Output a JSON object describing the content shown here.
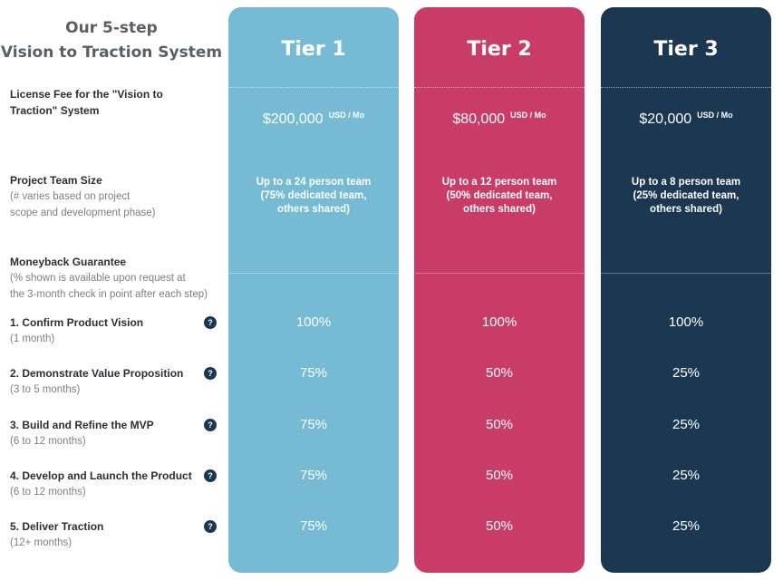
{
  "title": {
    "line1": "Our 5-step",
    "line2": "Vision to Traction System"
  },
  "rows": {
    "fee": {
      "label": "License Fee for the \"Vision to Traction\" System"
    },
    "team": {
      "label": "Project Team Size",
      "sub1": "(# varies based on project",
      "sub2": "scope and development phase)"
    },
    "moneyback": {
      "label": "Moneyback Guarantee",
      "sub1": "(% shown is available upon request at",
      "sub2": "the 3-month check in point after each step)"
    },
    "steps": [
      {
        "label": "1. Confirm Product Vision",
        "duration": "(1 month)"
      },
      {
        "label": "2. Demonstrate Value Proposition",
        "duration": "(3 to 5 months)"
      },
      {
        "label": "3. Build and Refine the MVP",
        "duration": "(6 to 12 months)"
      },
      {
        "label": "4. Develop and Launch the Product",
        "duration": "(6 to 12 months)"
      },
      {
        "label": "5. Deliver Traction",
        "duration": "(12+ months)"
      }
    ],
    "help_icon": "question-circle-icon",
    "help_glyph": "?"
  },
  "tiers": [
    {
      "name": "Tier 1",
      "color": "#76bbd3",
      "fee": "$200,000",
      "unit": "USD / Mo",
      "team": "Up to a 24 person team (75% dedicated team, others shared)",
      "pcts": [
        "100%",
        "75%",
        "75%",
        "75%",
        "75%"
      ]
    },
    {
      "name": "Tier 2",
      "color": "#c93c68",
      "fee": "$80,000",
      "unit": "USD / Mo",
      "team": "Up to a 12 person team (50% dedicated team, others shared)",
      "pcts": [
        "100%",
        "50%",
        "50%",
        "50%",
        "50%"
      ]
    },
    {
      "name": "Tier 3",
      "color": "#1b3752",
      "fee": "$20,000",
      "unit": "USD / Mo",
      "team": "Up to a 8 person team (25% dedicated team, others shared)",
      "pcts": [
        "100%",
        "25%",
        "25%",
        "25%",
        "25%"
      ]
    }
  ]
}
